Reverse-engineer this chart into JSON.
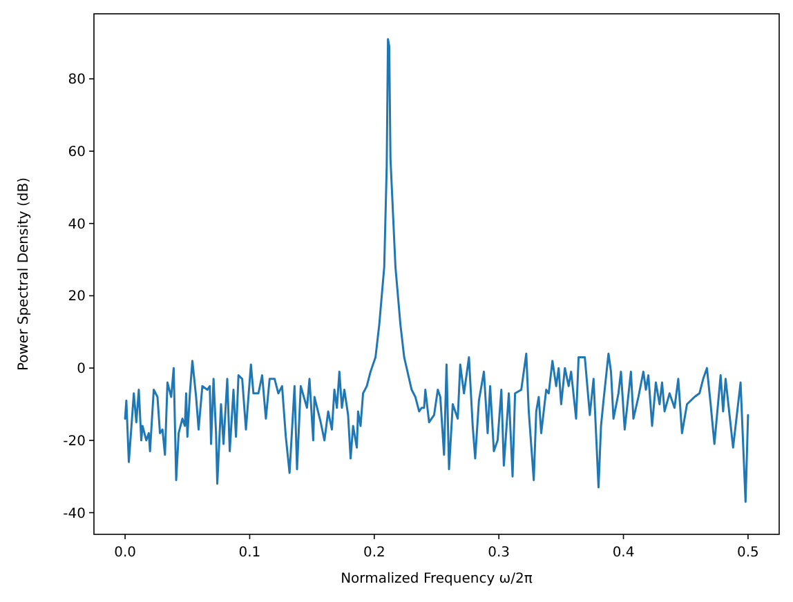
{
  "chart_data": {
    "type": "line",
    "xlabel": "Normalized Frequency ω/2π",
    "ylabel": "Power Spectral Density (dB)",
    "xlim": [
      -0.025,
      0.525
    ],
    "ylim": [
      -46,
      98
    ],
    "xticks": [
      {
        "value": 0,
        "label": "0.0"
      },
      0.1,
      0.2,
      0.3,
      0.4,
      0.5
    ],
    "yticks": [
      -40,
      -20,
      0,
      20,
      40,
      60,
      80
    ],
    "grid": false,
    "marker": "none",
    "line_style": "solid",
    "series": [
      {
        "color": "#1f77b4",
        "x": [
          0,
          0.001,
          0.003,
          0.007,
          0.009,
          0.011,
          0.013,
          0.014,
          0.017,
          0.019,
          0.02,
          0.023,
          0.026,
          0.028,
          0.03,
          0.032,
          0.034,
          0.037,
          0.039,
          0.041,
          0.043,
          0.046,
          0.048,
          0.049,
          0.05,
          0.052,
          0.054,
          0.057,
          0.059,
          0.062,
          0.066,
          0.068,
          0.069,
          0.071,
          0.073,
          0.074,
          0.077,
          0.079,
          0.082,
          0.084,
          0.087,
          0.089,
          0.091,
          0.094,
          0.097,
          0.101,
          0.103,
          0.107,
          0.11,
          0.113,
          0.116,
          0.12,
          0.123,
          0.126,
          0.129,
          0.132,
          0.136,
          0.138,
          0.141,
          0.146,
          0.148,
          0.151,
          0.152,
          0.157,
          0.16,
          0.163,
          0.166,
          0.168,
          0.17,
          0.172,
          0.174,
          0.176,
          0.179,
          0.181,
          0.183,
          0.186,
          0.187,
          0.189,
          0.191,
          0.194,
          0.197,
          0.201,
          0.204,
          0.208,
          0.21,
          0.211,
          0.212,
          0.213,
          0.217,
          0.221,
          0.224,
          0.23,
          0.233,
          0.236,
          0.238,
          0.24,
          0.241,
          0.244,
          0.248,
          0.251,
          0.253,
          0.256,
          0.258,
          0.26,
          0.263,
          0.267,
          0.269,
          0.272,
          0.276,
          0.279,
          0.281,
          0.284,
          0.288,
          0.291,
          0.293,
          0.296,
          0.299,
          0.302,
          0.304,
          0.308,
          0.311,
          0.313,
          0.318,
          0.322,
          0.324,
          0.328,
          0.33,
          0.332,
          0.334,
          0.338,
          0.34,
          0.343,
          0.346,
          0.348,
          0.35,
          0.353,
          0.356,
          0.358,
          0.362,
          0.364,
          0.369,
          0.371,
          0.373,
          0.376,
          0.38,
          0.382,
          0.384,
          0.388,
          0.39,
          0.392,
          0.396,
          0.398,
          0.401,
          0.406,
          0.408,
          0.412,
          0.416,
          0.418,
          0.42,
          0.423,
          0.426,
          0.429,
          0.431,
          0.433,
          0.437,
          0.441,
          0.444,
          0.447,
          0.451,
          0.457,
          0.461,
          0.464,
          0.467,
          0.47,
          0.473,
          0.478,
          0.48,
          0.482,
          0.488,
          0.494,
          0.498,
          0.5
        ],
        "values": [
          -14,
          -9,
          -26,
          -7,
          -15,
          -6,
          -20,
          -16,
          -20,
          -18,
          -23,
          -6,
          -8,
          -18,
          -17,
          -24,
          -4,
          -8,
          0,
          -31,
          -18,
          -14,
          -16,
          -7,
          -19,
          -7,
          2,
          -8,
          -17,
          -5,
          -6,
          -5,
          -21,
          -3,
          -18,
          -32,
          -10,
          -21,
          -3,
          -23,
          -6,
          -19,
          -2,
          -3,
          -17,
          1,
          -7,
          -7,
          -2,
          -14,
          -3,
          -3,
          -7,
          -5,
          -19,
          -29,
          -5,
          -28,
          -5,
          -11,
          -3,
          -20,
          -8,
          -15,
          -20,
          -12,
          -17,
          -6,
          -11,
          -1,
          -11,
          -6,
          -13,
          -25,
          -16,
          -22,
          -12,
          -16,
          -7,
          -5,
          -1,
          3,
          12,
          28,
          56,
          91,
          89,
          58,
          28,
          12,
          3,
          -6,
          -8,
          -12,
          -11,
          -11,
          -6,
          -15,
          -13,
          -6,
          -8,
          -24,
          1,
          -28,
          -10,
          -14,
          1,
          -7,
          3,
          -16,
          -25,
          -9,
          -1,
          -18,
          -5,
          -23,
          -20,
          -6,
          -27,
          -7,
          -30,
          -7,
          -6,
          4,
          -12,
          -31,
          -12,
          -8,
          -18,
          -6,
          -7,
          2,
          -5,
          0,
          -10,
          0,
          -5,
          -1,
          -14,
          3,
          3,
          -5,
          -13,
          -3,
          -33,
          -16,
          -9,
          4,
          -1,
          -14,
          -7,
          -1,
          -17,
          -1,
          -14,
          -8,
          -1,
          -6,
          -2,
          -16,
          -4,
          -10,
          -4,
          -12,
          -7,
          -11,
          -3,
          -18,
          -10,
          -8,
          -7,
          -3,
          0,
          -10,
          -21,
          -2,
          -12,
          -3,
          -22,
          -4,
          -37,
          -13
        ]
      }
    ]
  }
}
